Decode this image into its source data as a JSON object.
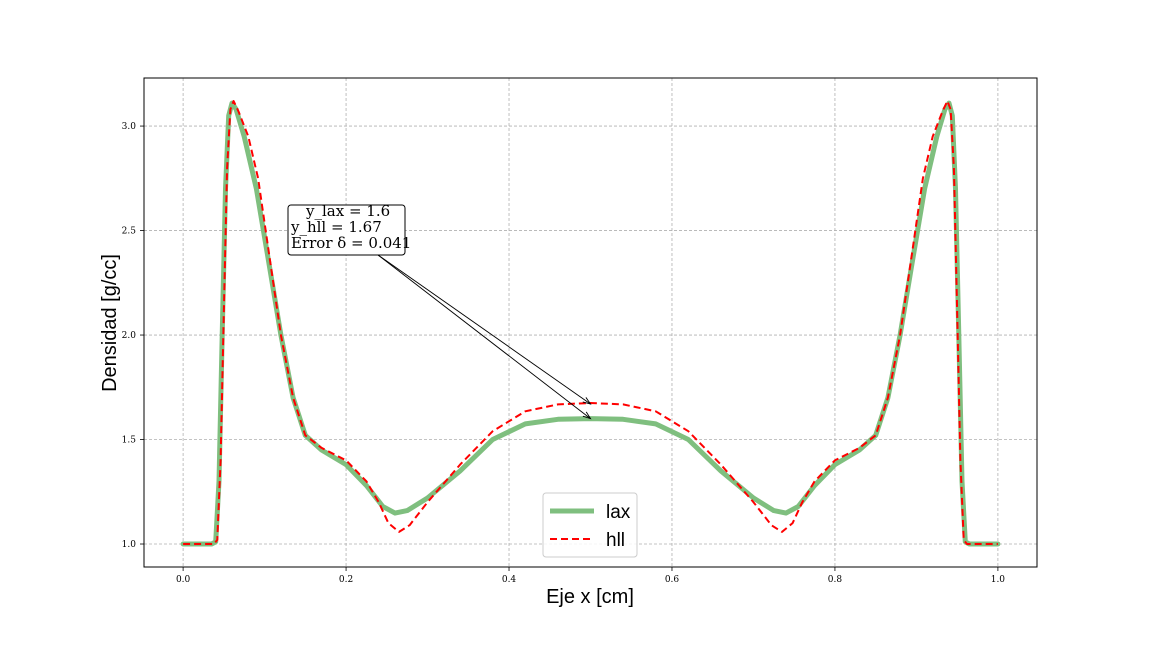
{
  "chart_data": {
    "type": "line",
    "title": "",
    "xlabel": "Eje x [cm]",
    "ylabel": "Densidad [g/cc]",
    "xlim": [
      -0.048,
      1.048
    ],
    "ylim": [
      0.89,
      3.23
    ],
    "grid": true,
    "legend_position": "lower center",
    "x_ticks": [
      "0.0",
      "0.2",
      "0.4",
      "0.6",
      "0.8",
      "1.0"
    ],
    "y_ticks": [
      "1.0",
      "1.5",
      "2.0",
      "2.5",
      "3.0"
    ],
    "series": [
      {
        "name": "lax",
        "color": "#7fbf7f",
        "style": "solid",
        "points": [
          [
            0.0,
            1.0
          ],
          [
            0.035,
            1.0
          ],
          [
            0.04,
            1.01
          ],
          [
            0.044,
            1.3
          ],
          [
            0.048,
            2.0
          ],
          [
            0.052,
            2.7
          ],
          [
            0.056,
            3.05
          ],
          [
            0.06,
            3.11
          ],
          [
            0.065,
            3.08
          ],
          [
            0.075,
            2.95
          ],
          [
            0.09,
            2.7
          ],
          [
            0.105,
            2.35
          ],
          [
            0.12,
            2.0
          ],
          [
            0.135,
            1.7
          ],
          [
            0.15,
            1.52
          ],
          [
            0.17,
            1.45
          ],
          [
            0.2,
            1.38
          ],
          [
            0.225,
            1.28
          ],
          [
            0.245,
            1.18
          ],
          [
            0.26,
            1.148
          ],
          [
            0.275,
            1.16
          ],
          [
            0.3,
            1.22
          ],
          [
            0.34,
            1.35
          ],
          [
            0.38,
            1.5
          ],
          [
            0.42,
            1.575
          ],
          [
            0.46,
            1.597
          ],
          [
            0.5,
            1.6
          ],
          [
            0.54,
            1.597
          ],
          [
            0.58,
            1.575
          ],
          [
            0.62,
            1.5
          ],
          [
            0.66,
            1.35
          ],
          [
            0.7,
            1.22
          ],
          [
            0.725,
            1.16
          ],
          [
            0.74,
            1.148
          ],
          [
            0.755,
            1.18
          ],
          [
            0.775,
            1.28
          ],
          [
            0.8,
            1.38
          ],
          [
            0.83,
            1.45
          ],
          [
            0.85,
            1.52
          ],
          [
            0.865,
            1.7
          ],
          [
            0.88,
            2.0
          ],
          [
            0.895,
            2.35
          ],
          [
            0.91,
            2.7
          ],
          [
            0.925,
            2.95
          ],
          [
            0.935,
            3.08
          ],
          [
            0.94,
            3.11
          ],
          [
            0.944,
            3.05
          ],
          [
            0.948,
            2.7
          ],
          [
            0.952,
            2.0
          ],
          [
            0.956,
            1.3
          ],
          [
            0.96,
            1.01
          ],
          [
            0.965,
            1.0
          ],
          [
            1.0,
            1.0
          ]
        ]
      },
      {
        "name": "hll",
        "color": "#ff0000",
        "style": "dashed",
        "points": [
          [
            0.0,
            1.0
          ],
          [
            0.038,
            1.0
          ],
          [
            0.042,
            1.02
          ],
          [
            0.046,
            1.4
          ],
          [
            0.05,
            2.1
          ],
          [
            0.054,
            2.8
          ],
          [
            0.058,
            3.08
          ],
          [
            0.062,
            3.12
          ],
          [
            0.068,
            3.07
          ],
          [
            0.08,
            2.95
          ],
          [
            0.092,
            2.75
          ],
          [
            0.105,
            2.4
          ],
          [
            0.12,
            2.0
          ],
          [
            0.135,
            1.7
          ],
          [
            0.15,
            1.52
          ],
          [
            0.17,
            1.46
          ],
          [
            0.2,
            1.4
          ],
          [
            0.225,
            1.3
          ],
          [
            0.24,
            1.2
          ],
          [
            0.252,
            1.1
          ],
          [
            0.265,
            1.058
          ],
          [
            0.278,
            1.09
          ],
          [
            0.3,
            1.2
          ],
          [
            0.34,
            1.38
          ],
          [
            0.38,
            1.54
          ],
          [
            0.42,
            1.635
          ],
          [
            0.46,
            1.668
          ],
          [
            0.5,
            1.675
          ],
          [
            0.54,
            1.668
          ],
          [
            0.58,
            1.635
          ],
          [
            0.62,
            1.54
          ],
          [
            0.66,
            1.38
          ],
          [
            0.7,
            1.2
          ],
          [
            0.722,
            1.09
          ],
          [
            0.735,
            1.058
          ],
          [
            0.748,
            1.1
          ],
          [
            0.76,
            1.2
          ],
          [
            0.775,
            1.3
          ],
          [
            0.8,
            1.4
          ],
          [
            0.83,
            1.46
          ],
          [
            0.85,
            1.52
          ],
          [
            0.865,
            1.7
          ],
          [
            0.88,
            2.0
          ],
          [
            0.895,
            2.4
          ],
          [
            0.908,
            2.75
          ],
          [
            0.92,
            2.95
          ],
          [
            0.932,
            3.07
          ],
          [
            0.938,
            3.12
          ],
          [
            0.942,
            3.08
          ],
          [
            0.946,
            2.8
          ],
          [
            0.95,
            2.1
          ],
          [
            0.954,
            1.4
          ],
          [
            0.958,
            1.02
          ],
          [
            0.962,
            1.0
          ],
          [
            1.0,
            1.0
          ]
        ]
      }
    ],
    "annotation": {
      "lines": [
        "y_lax = 1.6",
        "y_hll = 1.67",
        "Error δ = 0.041"
      ],
      "targets": [
        [
          0.5,
          1.6
        ],
        [
          0.5,
          1.67
        ]
      ]
    }
  }
}
